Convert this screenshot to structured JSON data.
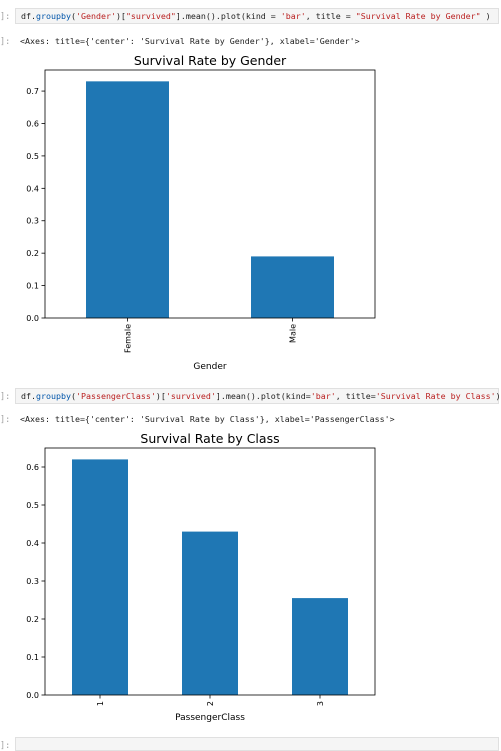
{
  "cells": [
    {
      "prompt": "]:",
      "code_parts": [
        {
          "t": "df.",
          "c": "k"
        },
        {
          "t": "groupby",
          "c": "f"
        },
        {
          "t": "(",
          "c": "k"
        },
        {
          "t": "'Gender'",
          "c": "s"
        },
        {
          "t": ")[",
          "c": "k"
        },
        {
          "t": "\"survived\"",
          "c": "s"
        },
        {
          "t": "].mean().plot(kind = ",
          "c": "k"
        },
        {
          "t": "'bar'",
          "c": "s"
        },
        {
          "t": ", title = ",
          "c": "k"
        },
        {
          "t": "\"Survival Rate by Gender\"",
          "c": "s"
        },
        {
          "t": " )",
          "c": "k"
        }
      ],
      "out_prompt": "]:",
      "output": "<Axes: title={'center': 'Survival Rate by Gender'}, xlabel='Gender'>"
    },
    {
      "prompt": "]:",
      "code_parts": [
        {
          "t": "df.",
          "c": "k"
        },
        {
          "t": "groupby",
          "c": "f"
        },
        {
          "t": "(",
          "c": "k"
        },
        {
          "t": "'PassengerClass'",
          "c": "s"
        },
        {
          "t": ")[",
          "c": "k"
        },
        {
          "t": "'survived'",
          "c": "s"
        },
        {
          "t": "].mean().plot(kind=",
          "c": "k"
        },
        {
          "t": "'bar'",
          "c": "s"
        },
        {
          "t": ", title=",
          "c": "k"
        },
        {
          "t": "'Survival Rate by Class'",
          "c": "s"
        },
        {
          "t": ")",
          "c": "k"
        }
      ],
      "out_prompt": "]:",
      "output": "<Axes: title={'center': 'Survival Rate by Class'}, xlabel='PassengerClass'>"
    },
    {
      "prompt": "]:"
    }
  ],
  "chart_data": [
    {
      "type": "bar",
      "title": "Survival Rate by Gender",
      "xlabel": "Gender",
      "ylabel": "",
      "categories": [
        "Female",
        "Male"
      ],
      "values": [
        0.73,
        0.19
      ],
      "ylim": [
        0,
        0.765
      ],
      "yticks": [
        "0.0",
        "0.1",
        "0.2",
        "0.3",
        "0.4",
        "0.5",
        "0.6",
        "0.7"
      ],
      "grid": false,
      "bar_color": "#1f77b4"
    },
    {
      "type": "bar",
      "title": "Survival Rate by Class",
      "xlabel": "PassengerClass",
      "ylabel": "",
      "categories": [
        "1",
        "2",
        "3"
      ],
      "values": [
        0.62,
        0.43,
        0.255
      ],
      "ylim": [
        0,
        0.65
      ],
      "yticks": [
        "0.0",
        "0.1",
        "0.2",
        "0.3",
        "0.4",
        "0.5",
        "0.6"
      ],
      "grid": false,
      "bar_color": "#1f77b4"
    }
  ]
}
